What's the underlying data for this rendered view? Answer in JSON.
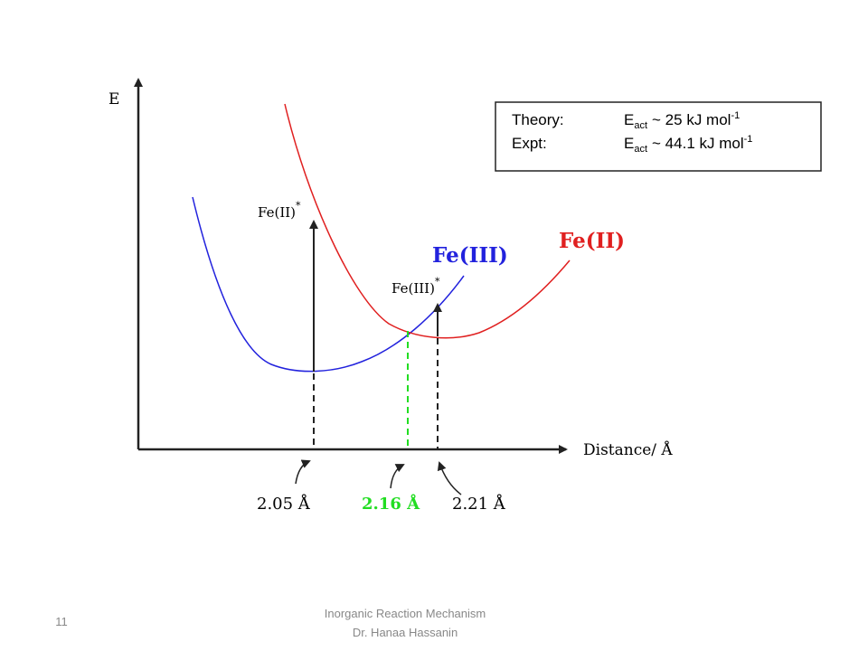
{
  "axes": {
    "y_label": "E",
    "x_label": "Distance/ Å"
  },
  "legend_box": {
    "rows": [
      {
        "label": "Theory:",
        "symbol": "E",
        "subscript": "act",
        "value": "~ 25 kJ mol",
        "superscript": "-1"
      },
      {
        "label": "Expt:",
        "symbol": "E",
        "subscript": "act",
        "value": "~ 44.1 kJ mol",
        "superscript": "-1"
      }
    ]
  },
  "curves": [
    {
      "label": "Fe(III)"
    },
    {
      "label": "Fe(II)"
    }
  ],
  "transitions": [
    {
      "label": "Fe(II)",
      "superscript": "*"
    },
    {
      "label": "Fe(III)",
      "superscript": "*"
    }
  ],
  "distances": [
    "2.05 Å",
    "2.16 Å",
    "2.21 Å"
  ],
  "footer": {
    "page": "11",
    "lines": [
      "Inorganic Reaction Mechanism",
      "Dr. Hanaa Hassanin"
    ]
  }
}
